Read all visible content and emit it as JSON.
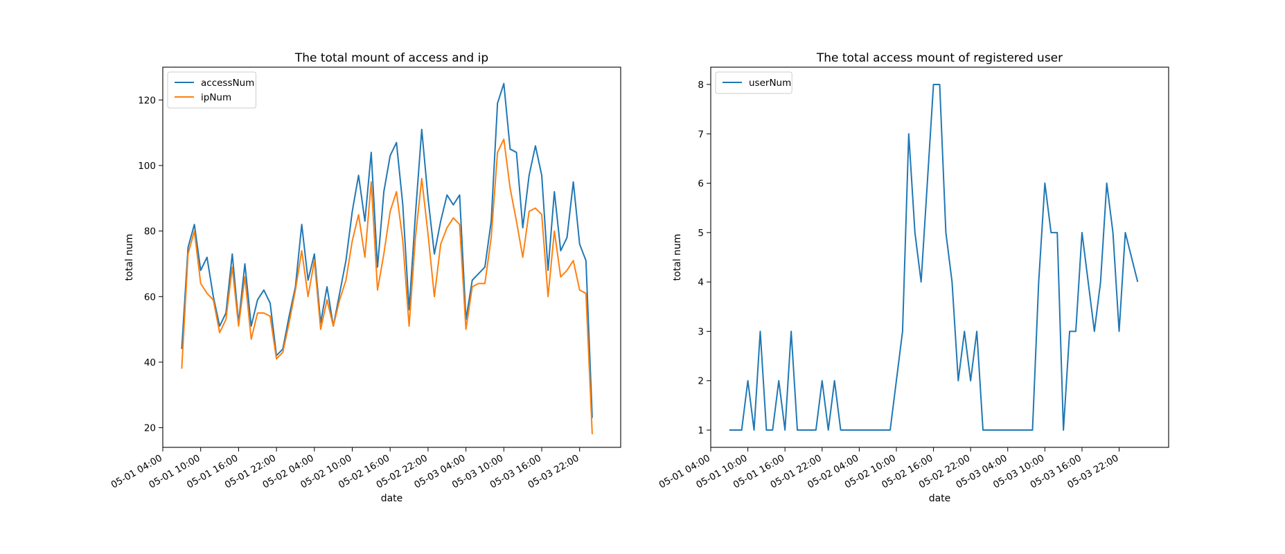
{
  "chart_data": [
    {
      "type": "line",
      "title": "The total mount of access and ip",
      "xlabel": "date",
      "ylabel": "total num",
      "x_ticks": [
        "05-01 04:00",
        "05-01 10:00",
        "05-01 16:00",
        "05-01 22:00",
        "05-02 04:00",
        "05-02 10:00",
        "05-02 16:00",
        "05-02 22:00",
        "05-03 04:00",
        "05-03 10:00",
        "05-03 16:00",
        "05-03 22:00"
      ],
      "y_ticks": [
        20,
        40,
        60,
        80,
        100,
        120
      ],
      "xlim": [
        "05-01 04:00",
        "05-04 04:30"
      ],
      "ylim": [
        14,
        130
      ],
      "legend": "upper-left",
      "grid": false,
      "series": [
        {
          "name": "accessNum",
          "color": "#1f77b4",
          "points": [
            [
              "05-01 07:00",
              44
            ],
            [
              "05-01 08:00",
              75
            ],
            [
              "05-01 09:00",
              82
            ],
            [
              "05-01 10:00",
              68
            ],
            [
              "05-01 11:00",
              72
            ],
            [
              "05-01 12:00",
              60
            ],
            [
              "05-01 13:00",
              51
            ],
            [
              "05-01 14:00",
              55
            ],
            [
              "05-01 15:00",
              73
            ],
            [
              "05-01 16:00",
              52
            ],
            [
              "05-01 17:00",
              70
            ],
            [
              "05-01 18:00",
              51
            ],
            [
              "05-01 19:00",
              59
            ],
            [
              "05-01 20:00",
              62
            ],
            [
              "05-01 21:00",
              58
            ],
            [
              "05-01 22:00",
              42
            ],
            [
              "05-01 23:00",
              44
            ],
            [
              "05-02 00:00",
              54
            ],
            [
              "05-02 01:00",
              63
            ],
            [
              "05-02 02:00",
              82
            ],
            [
              "05-02 03:00",
              65
            ],
            [
              "05-02 04:00",
              73
            ],
            [
              "05-02 05:00",
              52
            ],
            [
              "05-02 06:00",
              63
            ],
            [
              "05-02 07:00",
              51
            ],
            [
              "05-02 08:00",
              61
            ],
            [
              "05-02 09:00",
              71
            ],
            [
              "05-02 10:00",
              86
            ],
            [
              "05-02 11:00",
              97
            ],
            [
              "05-02 12:00",
              83
            ],
            [
              "05-02 13:00",
              104
            ],
            [
              "05-02 14:00",
              69
            ],
            [
              "05-02 15:00",
              92
            ],
            [
              "05-02 16:00",
              103
            ],
            [
              "05-02 17:00",
              107
            ],
            [
              "05-02 18:00",
              88
            ],
            [
              "05-02 19:00",
              56
            ],
            [
              "05-02 20:00",
              85
            ],
            [
              "05-02 21:00",
              111
            ],
            [
              "05-02 22:00",
              90
            ],
            [
              "05-02 23:00",
              73
            ],
            [
              "05-03 00:00",
              83
            ],
            [
              "05-03 01:00",
              91
            ],
            [
              "05-03 02:00",
              88
            ],
            [
              "05-03 03:00",
              91
            ],
            [
              "05-03 04:00",
              53
            ],
            [
              "05-03 05:00",
              65
            ],
            [
              "05-03 06:00",
              67
            ],
            [
              "05-03 07:00",
              69
            ],
            [
              "05-03 08:00",
              83
            ],
            [
              "05-03 09:00",
              119
            ],
            [
              "05-03 10:00",
              125
            ],
            [
              "05-03 11:00",
              105
            ],
            [
              "05-03 12:00",
              104
            ],
            [
              "05-03 13:00",
              81
            ],
            [
              "05-03 14:00",
              97
            ],
            [
              "05-03 15:00",
              106
            ],
            [
              "05-03 16:00",
              97
            ],
            [
              "05-03 17:00",
              68
            ],
            [
              "05-03 18:00",
              92
            ],
            [
              "05-03 19:00",
              74
            ],
            [
              "05-03 20:00",
              78
            ],
            [
              "05-03 21:00",
              95
            ],
            [
              "05-03 22:00",
              76
            ],
            [
              "05-03 23:00",
              71
            ],
            [
              "05-04 00:00",
              23
            ]
          ]
        },
        {
          "name": "ipNum",
          "color": "#ff7f0e",
          "points": [
            [
              "05-01 07:00",
              38
            ],
            [
              "05-01 08:00",
              73
            ],
            [
              "05-01 09:00",
              80
            ],
            [
              "05-01 10:00",
              64
            ],
            [
              "05-01 11:00",
              61
            ],
            [
              "05-01 12:00",
              59
            ],
            [
              "05-01 13:00",
              49
            ],
            [
              "05-01 14:00",
              53
            ],
            [
              "05-01 15:00",
              69
            ],
            [
              "05-01 16:00",
              51
            ],
            [
              "05-01 17:00",
              66
            ],
            [
              "05-01 18:00",
              47
            ],
            [
              "05-01 19:00",
              55
            ],
            [
              "05-01 20:00",
              55
            ],
            [
              "05-01 21:00",
              54
            ],
            [
              "05-01 22:00",
              41
            ],
            [
              "05-01 23:00",
              43
            ],
            [
              "05-02 00:00",
              52
            ],
            [
              "05-02 01:00",
              62
            ],
            [
              "05-02 02:00",
              74
            ],
            [
              "05-02 03:00",
              60
            ],
            [
              "05-02 04:00",
              71
            ],
            [
              "05-02 05:00",
              50
            ],
            [
              "05-02 06:00",
              59
            ],
            [
              "05-02 07:00",
              51
            ],
            [
              "05-02 08:00",
              59
            ],
            [
              "05-02 09:00",
              65
            ],
            [
              "05-02 10:00",
              77
            ],
            [
              "05-02 11:00",
              85
            ],
            [
              "05-02 12:00",
              72
            ],
            [
              "05-02 13:00",
              95
            ],
            [
              "05-02 14:00",
              62
            ],
            [
              "05-02 15:00",
              73
            ],
            [
              "05-02 16:00",
              86
            ],
            [
              "05-02 17:00",
              92
            ],
            [
              "05-02 18:00",
              77
            ],
            [
              "05-02 19:00",
              51
            ],
            [
              "05-02 20:00",
              78
            ],
            [
              "05-02 21:00",
              96
            ],
            [
              "05-02 22:00",
              79
            ],
            [
              "05-02 23:00",
              60
            ],
            [
              "05-03 00:00",
              76
            ],
            [
              "05-03 01:00",
              81
            ],
            [
              "05-03 02:00",
              84
            ],
            [
              "05-03 03:00",
              82
            ],
            [
              "05-03 04:00",
              50
            ],
            [
              "05-03 05:00",
              63
            ],
            [
              "05-03 06:00",
              64
            ],
            [
              "05-03 07:00",
              64
            ],
            [
              "05-03 08:00",
              78
            ],
            [
              "05-03 09:00",
              104
            ],
            [
              "05-03 10:00",
              108
            ],
            [
              "05-03 11:00",
              93
            ],
            [
              "05-03 12:00",
              83
            ],
            [
              "05-03 13:00",
              72
            ],
            [
              "05-03 14:00",
              86
            ],
            [
              "05-03 15:00",
              87
            ],
            [
              "05-03 16:00",
              85
            ],
            [
              "05-03 17:00",
              60
            ],
            [
              "05-03 18:00",
              80
            ],
            [
              "05-03 19:00",
              66
            ],
            [
              "05-03 20:00",
              68
            ],
            [
              "05-03 21:00",
              71
            ],
            [
              "05-03 22:00",
              62
            ],
            [
              "05-03 23:00",
              61
            ],
            [
              "05-04 00:00",
              18
            ]
          ]
        }
      ]
    },
    {
      "type": "line",
      "title": "The total access mount of registered user",
      "xlabel": "date",
      "ylabel": "total num",
      "x_ticks": [
        "05-01 04:00",
        "05-01 10:00",
        "05-01 16:00",
        "05-01 22:00",
        "05-02 04:00",
        "05-02 10:00",
        "05-02 16:00",
        "05-02 22:00",
        "05-03 04:00",
        "05-03 10:00",
        "05-03 16:00",
        "05-03 22:00"
      ],
      "y_ticks": [
        1,
        2,
        3,
        4,
        5,
        6,
        7,
        8
      ],
      "xlim": [
        "05-01 04:00",
        "05-04 06:00"
      ],
      "ylim": [
        0.65,
        8.35
      ],
      "legend": "upper-left",
      "grid": false,
      "series": [
        {
          "name": "userNum",
          "color": "#1f77b4",
          "points": [
            [
              "05-01 07:00",
              1
            ],
            [
              "05-01 08:00",
              1
            ],
            [
              "05-01 09:00",
              1
            ],
            [
              "05-01 10:00",
              2
            ],
            [
              "05-01 11:00",
              1
            ],
            [
              "05-01 12:00",
              3
            ],
            [
              "05-01 13:00",
              1
            ],
            [
              "05-01 14:00",
              1
            ],
            [
              "05-01 15:00",
              2
            ],
            [
              "05-01 16:00",
              1
            ],
            [
              "05-01 17:00",
              3
            ],
            [
              "05-01 18:00",
              1
            ],
            [
              "05-01 21:00",
              1
            ],
            [
              "05-01 22:00",
              2
            ],
            [
              "05-01 23:00",
              1
            ],
            [
              "05-02 00:00",
              2
            ],
            [
              "05-02 01:00",
              1
            ],
            [
              "05-02 09:00",
              1
            ],
            [
              "05-02 11:00",
              3
            ],
            [
              "05-02 12:00",
              7
            ],
            [
              "05-02 13:00",
              5
            ],
            [
              "05-02 14:00",
              4
            ],
            [
              "05-02 16:00",
              8
            ],
            [
              "05-02 17:00",
              8
            ],
            [
              "05-02 18:00",
              5
            ],
            [
              "05-02 19:00",
              4
            ],
            [
              "05-02 20:00",
              2
            ],
            [
              "05-02 21:00",
              3
            ],
            [
              "05-02 22:00",
              2
            ],
            [
              "05-02 23:00",
              3
            ],
            [
              "05-03 00:00",
              1
            ],
            [
              "05-03 08:00",
              1
            ],
            [
              "05-03 09:00",
              4
            ],
            [
              "05-03 10:00",
              6
            ],
            [
              "05-03 11:00",
              5
            ],
            [
              "05-03 12:00",
              5
            ],
            [
              "05-03 13:00",
              1
            ],
            [
              "05-03 14:00",
              3
            ],
            [
              "05-03 15:00",
              3
            ],
            [
              "05-03 16:00",
              5
            ],
            [
              "05-03 18:00",
              3
            ],
            [
              "05-03 19:00",
              4
            ],
            [
              "05-03 20:00",
              6
            ],
            [
              "05-03 21:00",
              5
            ],
            [
              "05-03 22:00",
              3
            ],
            [
              "05-03 23:00",
              5
            ],
            [
              "05-04 01:00",
              4
            ]
          ]
        }
      ]
    }
  ]
}
